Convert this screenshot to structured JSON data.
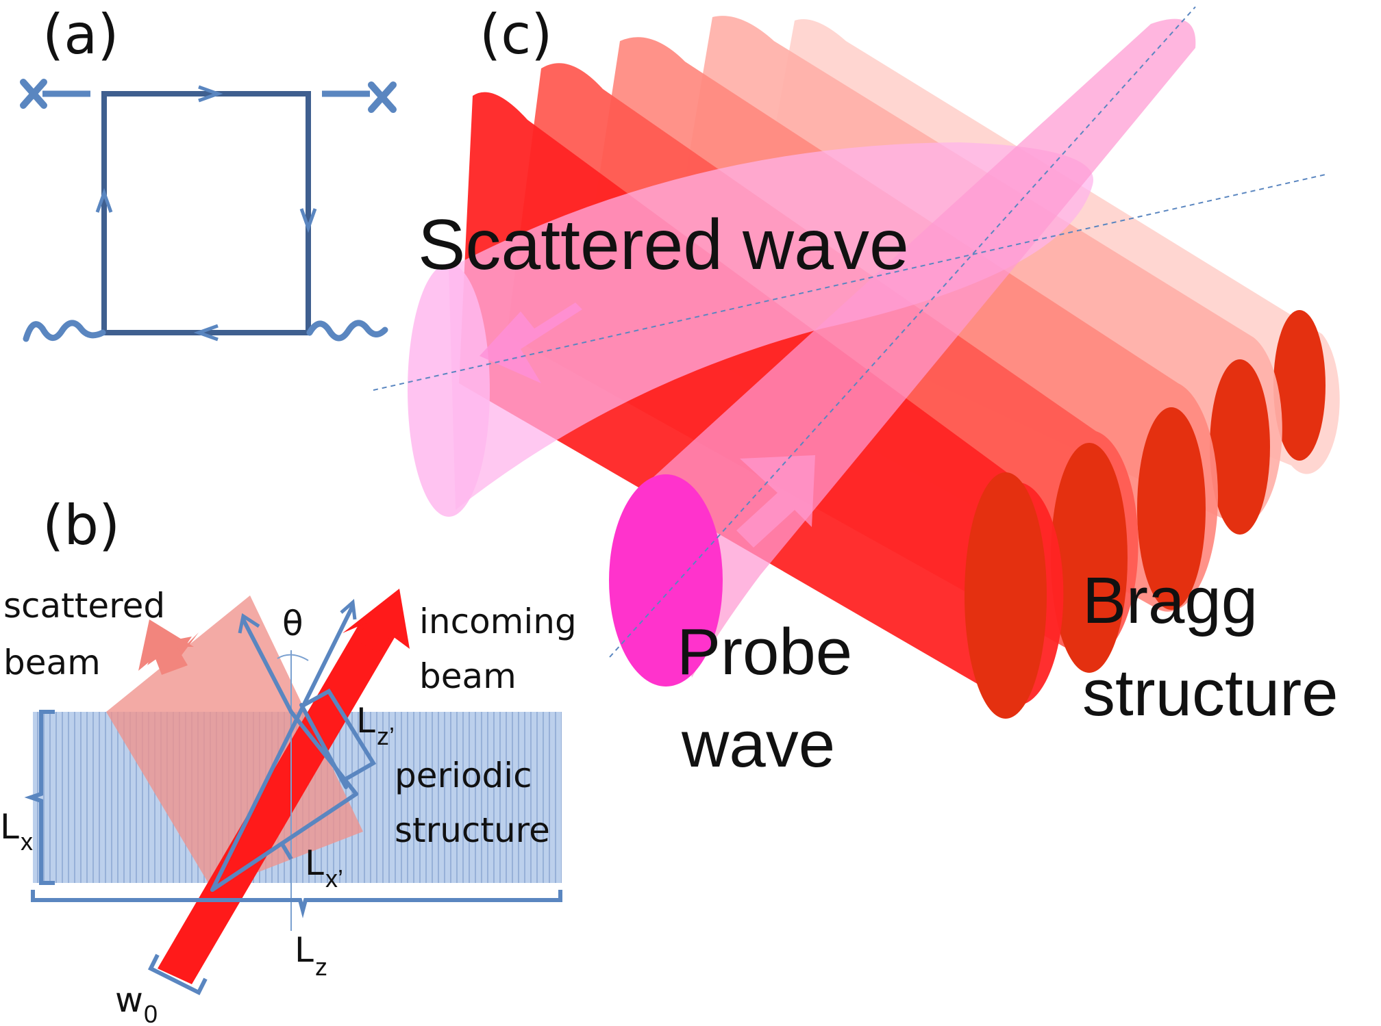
{
  "panels": {
    "a": {
      "label": "(a)"
    },
    "b": {
      "label": "(b)",
      "scattered_line1": "scattered",
      "scattered_line2": "beam",
      "incoming_line1": "incoming",
      "incoming_line2": "beam",
      "theta": "θ",
      "periodic_line1": "periodic",
      "periodic_line2": "structure",
      "Lx_main": "L",
      "Lx_sub": "x",
      "Lxp_main": "L",
      "Lxp_sub": "x’",
      "Lzp_main": "L",
      "Lzp_sub": "z’",
      "Lz_main": "L",
      "Lz_sub": "z",
      "w0_main": "w",
      "w0_sub": "0"
    },
    "c": {
      "label": "(c)",
      "scattered_wave": "Scattered wave",
      "probe_line1": "Probe",
      "probe_line2": "wave",
      "bragg_line1": "Bragg",
      "bragg_line2": "structure"
    }
  },
  "colors": {
    "diagram_blue": "#3f5f8f",
    "line_blue": "#5a86c0",
    "structure_fill": "#b8cdea",
    "beam_red": "#ff1a1a",
    "scattered_pink": "#f29b94",
    "bragg_reds": [
      "#ff2020",
      "#ff4a45",
      "#ff7a72",
      "#ffa7a0",
      "#ffc6bf"
    ],
    "bragg_caps": "#e43010",
    "probe_pink": "#ff8fc8",
    "probe_cap": "#ff33cc",
    "scattered_wave_pink": "#ffb0e8"
  },
  "icons": {
    "loop_arrows": "arrowhead-icon",
    "endpoint": "cross-icon",
    "photon": "wavy-line-icon"
  }
}
